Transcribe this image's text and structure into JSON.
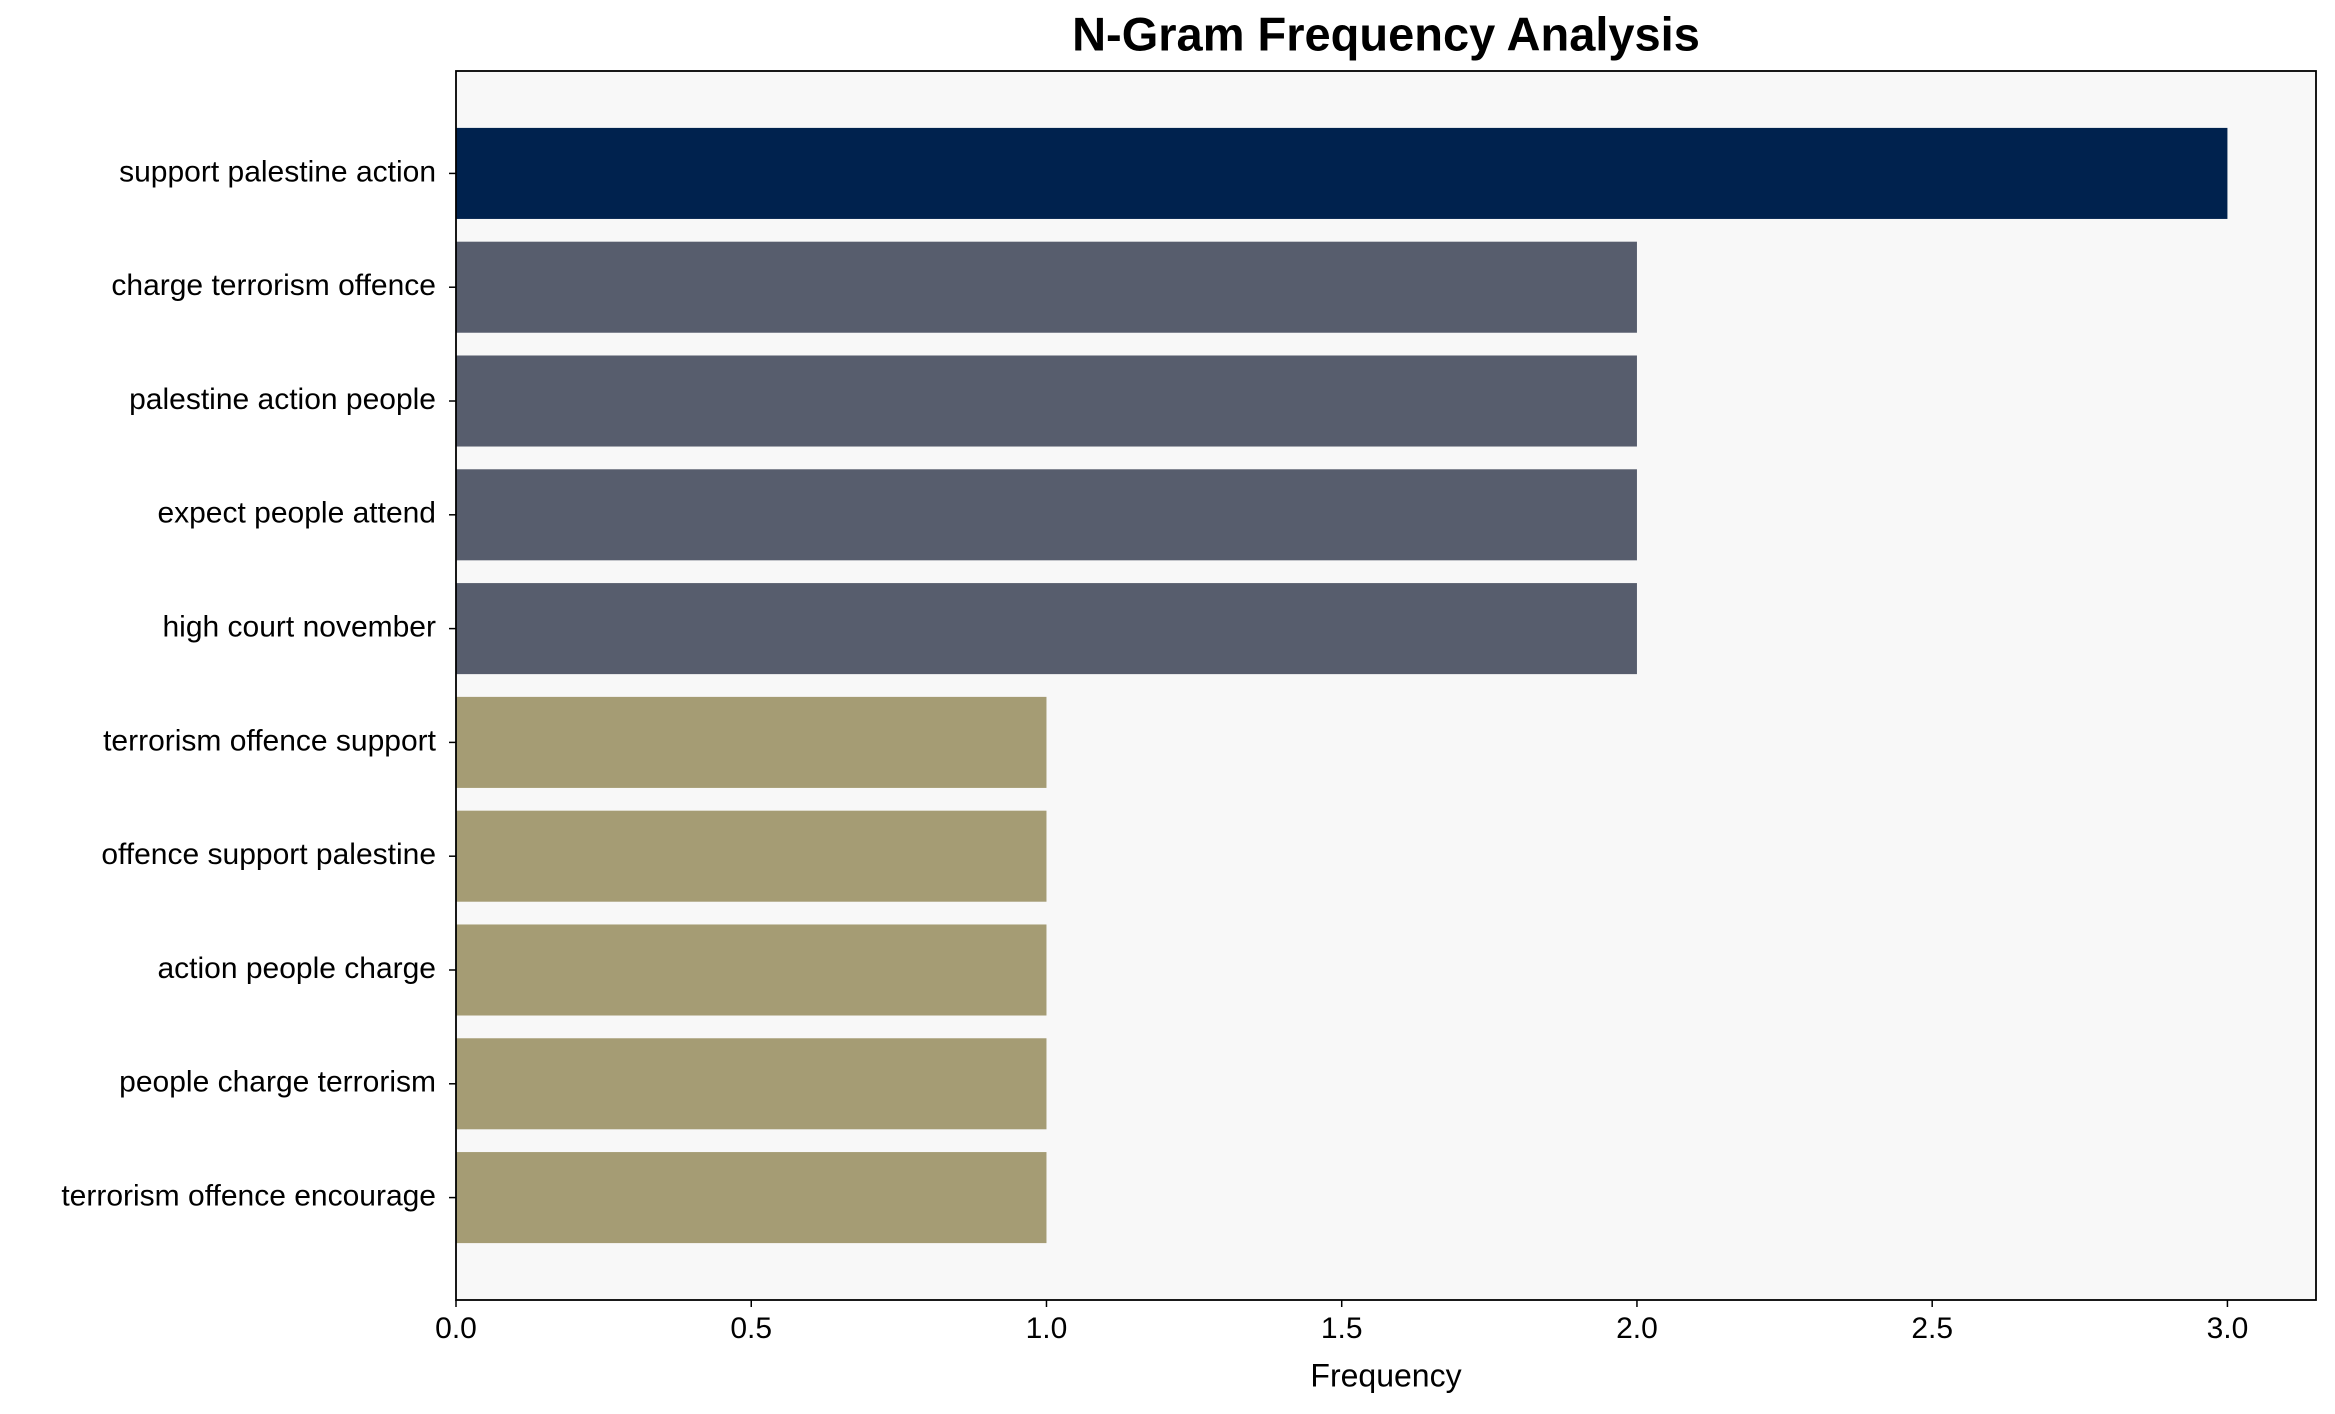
{
  "chart_data": {
    "type": "bar",
    "orientation": "horizontal",
    "title": "N-Gram Frequency Analysis",
    "x_label": "Frequency",
    "categories": [
      "support palestine action",
      "charge terrorism offence",
      "palestine action people",
      "expect people attend",
      "high court november",
      "terrorism offence support",
      "offence support palestine",
      "action people charge",
      "people charge terrorism",
      "terrorism offence encourage"
    ],
    "values": [
      3,
      2,
      2,
      2,
      2,
      1,
      1,
      1,
      1,
      1
    ],
    "colors": [
      "#00224e",
      "#575d6d",
      "#575d6d",
      "#575d6d",
      "#575d6d",
      "#a59c74",
      "#a59c74",
      "#a59c74",
      "#a59c74",
      "#a59c74"
    ],
    "xlim": [
      0,
      3.15
    ],
    "xticks": [
      {
        "value": 0,
        "label": "0.0"
      },
      0.5,
      {
        "value": 1,
        "label": "1.0"
      },
      1.5,
      {
        "value": 2,
        "label": "2.0"
      },
      2.5,
      {
        "value": 3,
        "label": "3.0"
      }
    ],
    "grid": false
  }
}
